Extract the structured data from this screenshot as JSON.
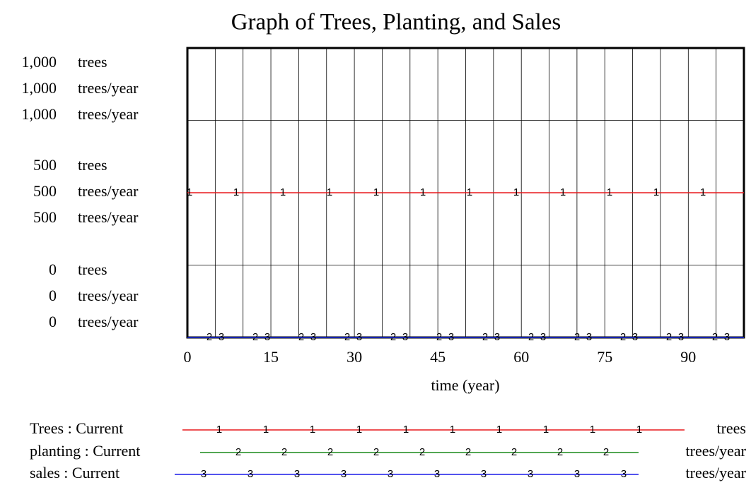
{
  "chart_data": {
    "type": "line",
    "title": "Graph of Trees, Planting, and Sales",
    "xlabel": "time (year)",
    "x": [
      0,
      100
    ],
    "xlim": [
      0,
      100
    ],
    "xticks": [
      0,
      15,
      30,
      45,
      60,
      75,
      90
    ],
    "xminor": [
      5,
      10,
      20,
      25,
      35,
      40,
      50,
      55,
      65,
      70,
      80,
      85,
      95
    ],
    "grid": true,
    "series": [
      {
        "name": "Trees : Current",
        "marker": "1",
        "unit": "trees",
        "color": "#e8191c",
        "values": [
          500,
          500
        ],
        "ylim": [
          0,
          1000
        ],
        "yticks": [
          0,
          500,
          {
            "value": 1000,
            "label": "1,000"
          }
        ]
      },
      {
        "name": "planting : Current",
        "marker": "2",
        "unit": "trees/year",
        "color": "#1a8a1a",
        "values": [
          0,
          0
        ],
        "ylim": [
          0,
          1000
        ],
        "yticks": [
          0,
          500,
          {
            "value": 1000,
            "label": "1,000"
          }
        ]
      },
      {
        "name": "sales : Current",
        "marker": "3",
        "unit": "trees/year",
        "color": "#1a1ae8",
        "values": [
          0,
          0
        ],
        "ylim": [
          0,
          1000
        ],
        "yticks": [
          0,
          500,
          {
            "value": 1000,
            "label": "1,000"
          }
        ]
      }
    ]
  }
}
